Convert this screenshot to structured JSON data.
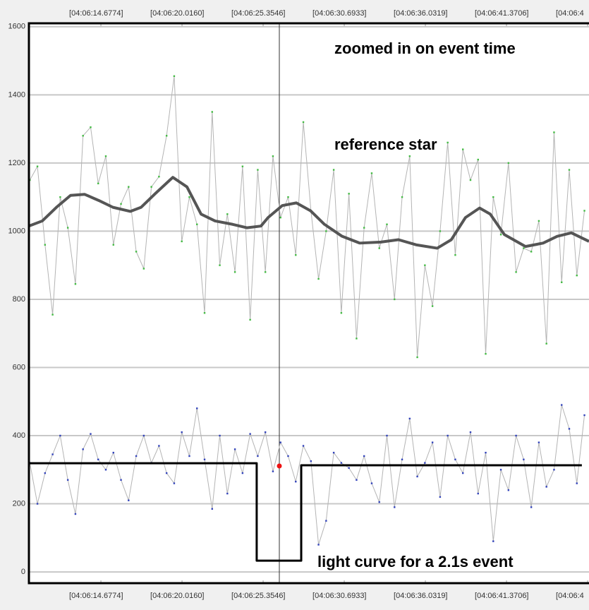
{
  "chart_data": {
    "type": "line",
    "xlim": [
      9.94,
      46.8
    ],
    "ylim": [
      -33,
      1610
    ],
    "yticks": [
      0,
      200,
      400,
      600,
      800,
      1000,
      1200,
      1400,
      1600
    ],
    "xticks": [
      {
        "value": 14.6774,
        "label": "[04:06:14.6774]"
      },
      {
        "value": 20.016,
        "label": "[04:06:20.0160]"
      },
      {
        "value": 25.3546,
        "label": "[04:06:25.3546]"
      },
      {
        "value": 30.6933,
        "label": "[04:06:30.6933]"
      },
      {
        "value": 36.0319,
        "label": "[04:06:36.0319]"
      },
      {
        "value": 41.3706,
        "label": "[04:06:41.3706]"
      },
      {
        "value": 46.7092,
        "label": "[04:06:4"
      }
    ],
    "grid": true,
    "cursor_x": 26.42,
    "annotations": [
      "zoomed in on event time",
      "reference star",
      "light curve for a 2.1s event"
    ],
    "highlight": {
      "x": 26.42,
      "y": 311,
      "color": "#ee1111"
    },
    "series": [
      {
        "color": "#b4b4b4",
        "width": 1,
        "marker_color": "#44bb44",
        "x": [
          10,
          10.5,
          11,
          11.5,
          12,
          12.5,
          13,
          13.5,
          14,
          14.5,
          15,
          15.5,
          16,
          16.5,
          17,
          17.5,
          18,
          18.5,
          19,
          19.5,
          20,
          20.5,
          21,
          21.5,
          22,
          22.5,
          23,
          23.5,
          24,
          24.5,
          25,
          25.5,
          26,
          26.5,
          27,
          27.5,
          28,
          28.5,
          29,
          29.5,
          30,
          30.5,
          31,
          31.5,
          32,
          32.5,
          33,
          33.5,
          34,
          34.5,
          35,
          35.5,
          36,
          36.5,
          37,
          37.5,
          38,
          38.5,
          39,
          39.5,
          40,
          40.5,
          41,
          41.5,
          42,
          42.5,
          43,
          43.5,
          44,
          44.5,
          45,
          45.5,
          46,
          46.5
        ],
        "values": [
          1150,
          1190,
          960,
          755,
          1100,
          1010,
          845,
          1280,
          1305,
          1140,
          1220,
          960,
          1080,
          1130,
          940,
          890,
          1130,
          1160,
          1280,
          1455,
          970,
          1100,
          1020,
          760,
          1350,
          900,
          1050,
          880,
          1190,
          740,
          1180,
          880,
          1220,
          1040,
          1100,
          930,
          1320,
          1060,
          860,
          1000,
          1180,
          760,
          1110,
          685,
          1010,
          1170,
          950,
          1020,
          800,
          1100,
          1220,
          630,
          900,
          780,
          1000,
          1260,
          930,
          1240,
          1150,
          1210,
          640,
          1100,
          990,
          1200,
          880,
          950,
          940,
          1030,
          670,
          1290,
          850,
          1180,
          870,
          1060
        ]
      },
      {
        "color": "#555555",
        "width": 4,
        "x": [
          9.94,
          10.82,
          11.75,
          12.68,
          13.61,
          14.54,
          15.47,
          16.62,
          17.32,
          18.25,
          19.41,
          20.34,
          21.27,
          22.19,
          23.35,
          24.28,
          25.21,
          25.68,
          26.61,
          27.54,
          28.47,
          29.39,
          30.55,
          31.71,
          33.1,
          34.26,
          35.42,
          36.81,
          37.74,
          38.67,
          39.6,
          40.3,
          41.23,
          42.62,
          43.78,
          44.71,
          45.64,
          46.8
        ],
        "values": [
          1015,
          1030,
          1070,
          1105,
          1108,
          1090,
          1070,
          1058,
          1070,
          1110,
          1158,
          1130,
          1050,
          1030,
          1020,
          1010,
          1015,
          1040,
          1075,
          1083,
          1060,
          1020,
          985,
          965,
          968,
          975,
          960,
          950,
          975,
          1040,
          1068,
          1050,
          990,
          955,
          965,
          985,
          995,
          970
        ]
      },
      {
        "color": "#b4b4b4",
        "width": 1,
        "marker_color": "#3344bb",
        "x": [
          10,
          10.5,
          11,
          11.5,
          12,
          12.5,
          13,
          13.5,
          14,
          14.5,
          15,
          15.5,
          16,
          16.5,
          17,
          17.5,
          18,
          18.5,
          19,
          19.5,
          20,
          20.5,
          21,
          21.5,
          22,
          22.5,
          23,
          23.5,
          24,
          24.5,
          25,
          25.5,
          26,
          26.5,
          27,
          27.5,
          28,
          28.5,
          29,
          29.5,
          30,
          30.5,
          31,
          31.5,
          32,
          32.5,
          33,
          33.5,
          34,
          34.5,
          35,
          35.5,
          36,
          36.5,
          37,
          37.5,
          38,
          38.5,
          39,
          39.5,
          40,
          40.5,
          41,
          41.5,
          42,
          42.5,
          43,
          43.5,
          44,
          44.5,
          45,
          45.5,
          46,
          46.5
        ],
        "values": [
          320,
          200,
          290,
          345,
          400,
          270,
          170,
          360,
          405,
          330,
          300,
          350,
          270,
          210,
          340,
          400,
          320,
          370,
          290,
          260,
          410,
          340,
          480,
          330,
          185,
          400,
          230,
          360,
          290,
          405,
          340,
          410,
          295,
          380,
          340,
          265,
          370,
          325,
          80,
          150,
          350,
          320,
          305,
          270,
          340,
          260,
          205,
          400,
          190,
          330,
          450,
          280,
          320,
          380,
          220,
          400,
          330,
          290,
          410,
          230,
          350,
          90,
          300,
          240,
          400,
          330,
          190,
          380,
          250,
          300,
          490,
          420,
          260,
          460
        ]
      },
      {
        "color": "#000000",
        "width": 3,
        "x": [
          9.94,
          24.93,
          24.93,
          27.86,
          27.86,
          46.33
        ],
        "values": [
          319,
          319,
          33,
          33,
          313,
          313
        ]
      }
    ]
  }
}
